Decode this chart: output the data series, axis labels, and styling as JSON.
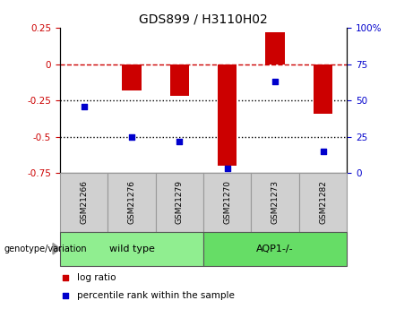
{
  "title": "GDS899 / H3110H02",
  "samples": [
    "GSM21266",
    "GSM21276",
    "GSM21279",
    "GSM21270",
    "GSM21273",
    "GSM21282"
  ],
  "log_ratio": [
    0.0,
    -0.18,
    -0.22,
    -0.7,
    0.22,
    -0.34
  ],
  "percentile_rank": [
    46,
    25,
    22,
    3,
    63,
    15
  ],
  "ylim_left": [
    -0.75,
    0.25
  ],
  "ylim_right": [
    0,
    100
  ],
  "right_ticks": [
    0,
    25,
    50,
    75,
    100
  ],
  "right_tick_labels": [
    "0",
    "25",
    "50",
    "75",
    "100%"
  ],
  "left_ticks": [
    -0.75,
    -0.5,
    -0.25,
    0,
    0.25
  ],
  "bar_color": "#cc0000",
  "dot_color": "#0000cc",
  "dashed_line_color": "#cc0000",
  "dotted_line_color": "#000000",
  "groups": [
    {
      "label": "wild type",
      "indices": [
        0,
        1,
        2
      ],
      "color": "#90ee90"
    },
    {
      "label": "AQP1-/-",
      "indices": [
        3,
        4,
        5
      ],
      "color": "#66dd66"
    }
  ],
  "group_label_prefix": "genotype/variation",
  "legend_red_label": "log ratio",
  "legend_blue_label": "percentile rank within the sample",
  "bar_width": 0.4,
  "sample_box_color": "#d0d0d0",
  "sample_box_edge": "#999999"
}
